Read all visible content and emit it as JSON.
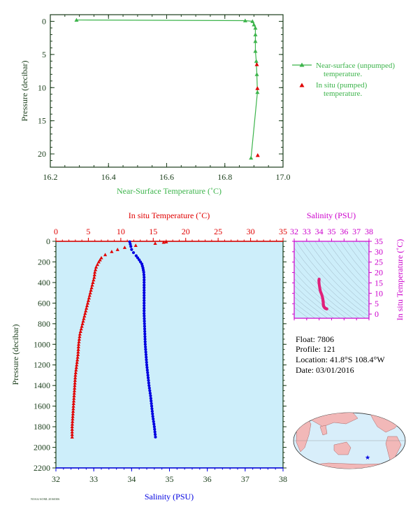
{
  "colors": {
    "near_surface": "#3cb44b",
    "in_situ": "#e00000",
    "salinity": "#0000e0",
    "axis_dark": "#1a3d1a",
    "ts_magenta": "#cc00cc",
    "ts_points": "#e0207a",
    "plot_bg": "#cdeefa"
  },
  "info": {
    "float": "Float:  7806",
    "profile": "Profile:  121",
    "location": "Location:  41.8°S  108.4°W",
    "date": "Date:  03/01/2016"
  },
  "footer_code": "NOAA/AOML 20160306",
  "chart_data": [
    {
      "type": "line",
      "id": "near_surface",
      "xlabel": "Near-Surface Temperature (˚C)",
      "ylabel": "Pressure (decibar)",
      "xlim": [
        16.2,
        17.0
      ],
      "ylim": [
        22,
        -1
      ],
      "xticks": [
        "16.2",
        "16.4",
        "16.6",
        "16.8",
        "17.0"
      ],
      "yticks": [
        "0",
        "5",
        "10",
        "15",
        "20"
      ],
      "legend": [
        "Near-surface (unpumped) temperature.",
        "In situ (pumped) temperature."
      ],
      "legend_position": "right",
      "series": [
        {
          "name": "Near-surface (unpumped) temperature.",
          "marker": "triangle-line",
          "points": [
            [
              16.29,
              -0.2
            ],
            [
              16.87,
              -0.1
            ],
            [
              16.895,
              0.0
            ],
            [
              16.9,
              0.5
            ],
            [
              16.905,
              1.0
            ],
            [
              16.905,
              2.0
            ],
            [
              16.905,
              3.0
            ],
            [
              16.905,
              4.5
            ],
            [
              16.908,
              6.0
            ],
            [
              16.91,
              8.0
            ],
            [
              16.912,
              10.7
            ],
            [
              16.89,
              20.6
            ]
          ]
        },
        {
          "name": "In situ (pumped) temperature.",
          "marker": "triangle",
          "points": [
            [
              16.91,
              6.5
            ],
            [
              16.912,
              10.1
            ],
            [
              16.913,
              20.2
            ]
          ]
        }
      ]
    },
    {
      "type": "scatter",
      "id": "profile",
      "ylabel": "Pressure (decibar)",
      "top_xlabel": "In situ Temperature (˚C)",
      "bottom_xlabel": "Salinity (PSU)",
      "temp_lim": [
        0,
        35
      ],
      "sal_lim": [
        32,
        38
      ],
      "ylim": [
        0,
        2200
      ],
      "temp_ticks": [
        "0",
        "5",
        "10",
        "15",
        "20",
        "25",
        "30",
        "35"
      ],
      "sal_ticks": [
        "32",
        "33",
        "34",
        "35",
        "36",
        "37",
        "38"
      ],
      "yticks": [
        "0",
        "200",
        "400",
        "600",
        "800",
        "1000",
        "1200",
        "1400",
        "1600",
        "1800",
        "2000",
        "2200"
      ],
      "temperature": [
        [
          17.0,
          5
        ],
        [
          16.6,
          10
        ],
        [
          15.3,
          20
        ],
        [
          12.3,
          40
        ],
        [
          10.6,
          60
        ],
        [
          9.5,
          80
        ],
        [
          8.6,
          100
        ],
        [
          7.6,
          130
        ],
        [
          7.0,
          160
        ],
        [
          6.6,
          200
        ],
        [
          6.2,
          250
        ],
        [
          6.0,
          300
        ],
        [
          5.9,
          350
        ],
        [
          5.7,
          400
        ],
        [
          5.5,
          450
        ],
        [
          5.3,
          500
        ],
        [
          5.1,
          550
        ],
        [
          4.9,
          600
        ],
        [
          4.7,
          650
        ],
        [
          4.5,
          700
        ],
        [
          4.3,
          750
        ],
        [
          4.1,
          800
        ],
        [
          3.9,
          850
        ],
        [
          3.7,
          900
        ],
        [
          3.6,
          950
        ],
        [
          3.5,
          1000
        ],
        [
          3.4,
          1100
        ],
        [
          3.2,
          1200
        ],
        [
          3.0,
          1300
        ],
        [
          2.9,
          1400
        ],
        [
          2.8,
          1500
        ],
        [
          2.7,
          1600
        ],
        [
          2.6,
          1700
        ],
        [
          2.5,
          1800
        ],
        [
          2.5,
          1900
        ]
      ],
      "salinity": [
        [
          33.95,
          5
        ],
        [
          33.98,
          50
        ],
        [
          34.0,
          80
        ],
        [
          34.05,
          110
        ],
        [
          34.12,
          140
        ],
        [
          34.2,
          180
        ],
        [
          34.27,
          220
        ],
        [
          34.3,
          260
        ],
        [
          34.32,
          300
        ],
        [
          34.33,
          350
        ],
        [
          34.33,
          400
        ],
        [
          34.33,
          500
        ],
        [
          34.33,
          600
        ],
        [
          34.33,
          700
        ],
        [
          34.34,
          800
        ],
        [
          34.35,
          900
        ],
        [
          34.36,
          1000
        ],
        [
          34.38,
          1100
        ],
        [
          34.4,
          1200
        ],
        [
          34.43,
          1300
        ],
        [
          34.46,
          1400
        ],
        [
          34.5,
          1500
        ],
        [
          34.53,
          1600
        ],
        [
          34.56,
          1700
        ],
        [
          34.6,
          1800
        ],
        [
          34.63,
          1900
        ]
      ]
    },
    {
      "type": "scatter",
      "id": "ts_diagram",
      "xlabel": "Salinity (PSU)",
      "ylabel": "In situ Temperature (˚C)",
      "xlim": [
        32,
        38
      ],
      "ylim": [
        -2,
        35
      ],
      "xticks": [
        "32",
        "33",
        "34",
        "35",
        "36",
        "37",
        "38"
      ],
      "yticks": [
        "0",
        "5",
        "10",
        "15",
        "20",
        "25",
        "30",
        "35"
      ],
      "points": [
        [
          34.0,
          16.8
        ],
        [
          33.98,
          16.0
        ],
        [
          34.0,
          14.5
        ],
        [
          34.05,
          12.5
        ],
        [
          34.1,
          11.0
        ],
        [
          34.2,
          9.5
        ],
        [
          34.27,
          8.0
        ],
        [
          34.3,
          7.0
        ],
        [
          34.32,
          6.2
        ],
        [
          34.33,
          5.7
        ],
        [
          34.33,
          5.0
        ],
        [
          34.34,
          4.3
        ],
        [
          34.36,
          3.8
        ],
        [
          34.4,
          3.4
        ],
        [
          34.45,
          3.0
        ],
        [
          34.5,
          2.8
        ],
        [
          34.56,
          2.6
        ],
        [
          34.62,
          2.5
        ]
      ]
    }
  ]
}
